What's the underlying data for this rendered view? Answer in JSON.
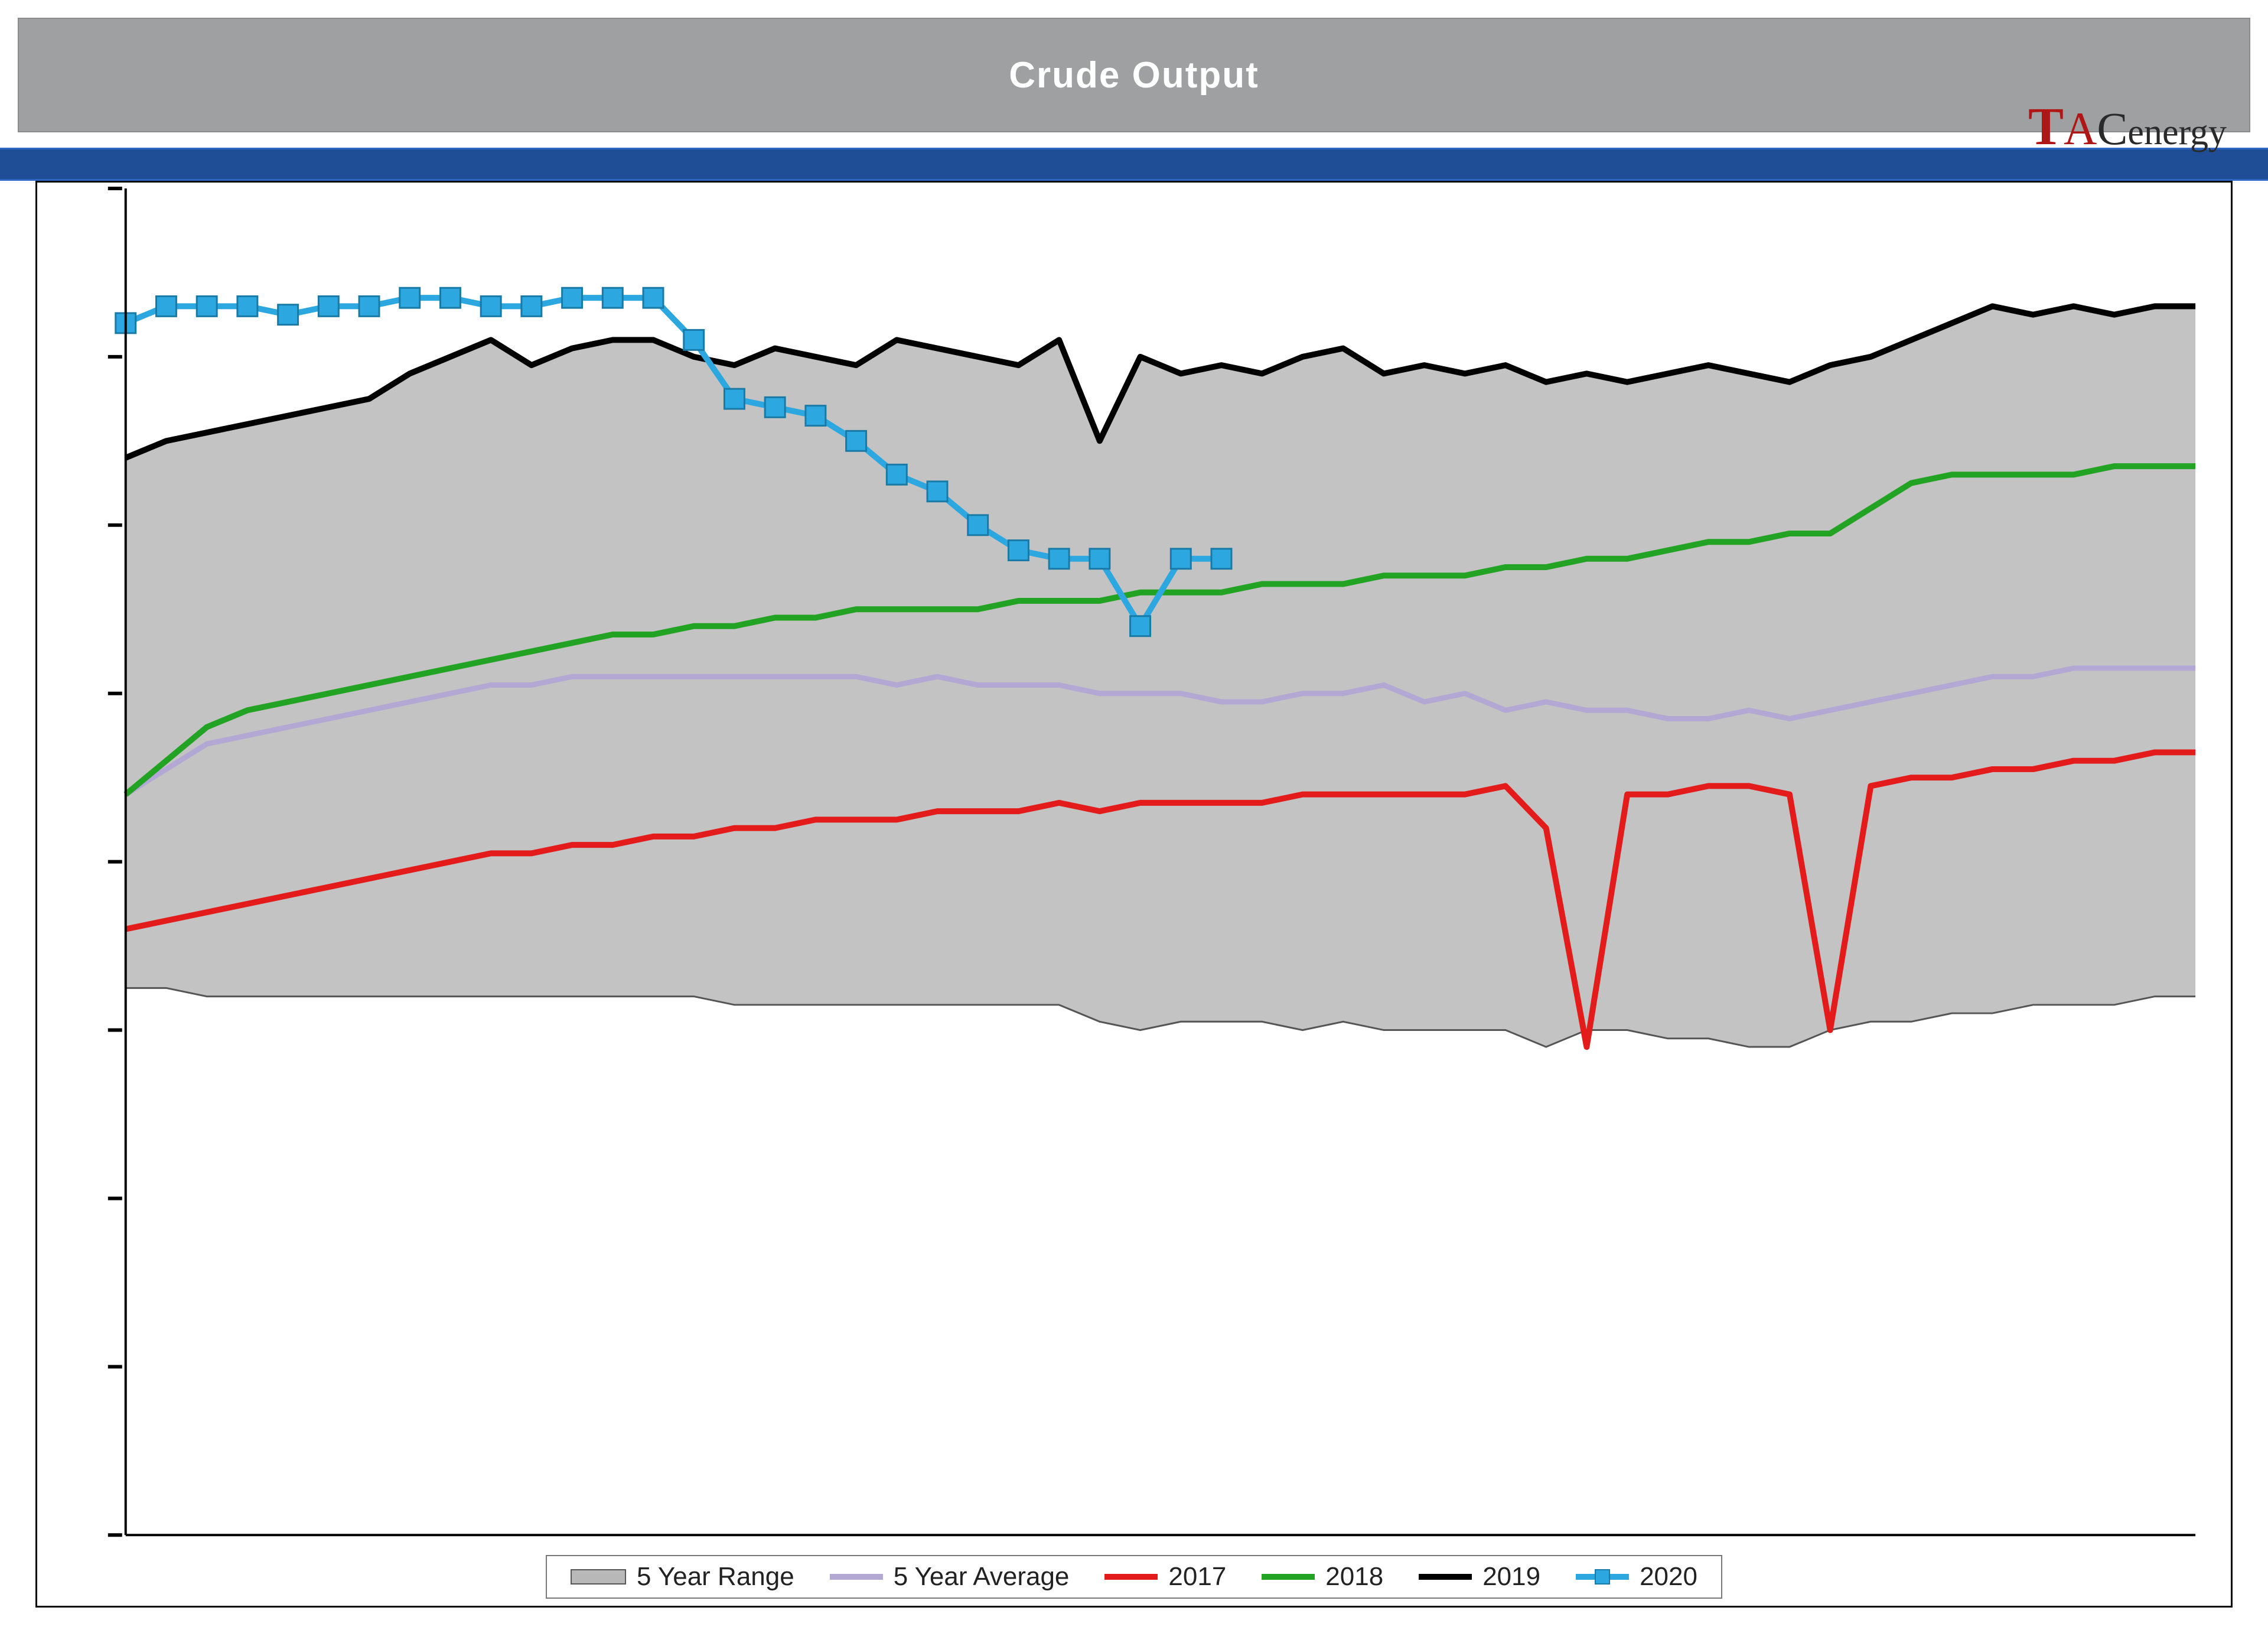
{
  "title": "Crude Output",
  "logo": {
    "t": "T",
    "a": "A",
    "c": "C",
    "rest": "energy"
  },
  "legend": {
    "range": "5 Year Range",
    "avg": "5 Year Average",
    "y2017": "2017",
    "y2018": "2018",
    "y2019": "2019",
    "y2020": "2020"
  },
  "chart": {
    "type": "line",
    "x_count": 52,
    "ylim": [
      6000,
      14000
    ],
    "y_gridlines": [
      6000,
      7000,
      8000,
      9000,
      10000,
      11000,
      12000,
      13000,
      14000
    ],
    "background_color": "#ffffff",
    "grid_tick_color": "#000000",
    "title_bg": "#9fa0a2",
    "title_color": "#ffffff",
    "stripe_color": "#1f4e97",
    "series": {
      "range_high": {
        "color": "#b8b8b8",
        "values": [
          12400,
          12500,
          12550,
          12600,
          12650,
          12700,
          12750,
          12900,
          13000,
          13100,
          12950,
          13050,
          13100,
          13100,
          13000,
          12950,
          13050,
          13000,
          12950,
          13100,
          13050,
          13000,
          12950,
          13100,
          12500,
          13000,
          12900,
          12950,
          12900,
          13000,
          13050,
          12900,
          12950,
          12900,
          12950,
          12850,
          12900,
          12850,
          12900,
          12950,
          12900,
          12850,
          12950,
          13000,
          13100,
          13200,
          13300,
          13250,
          13300,
          13250,
          13300,
          13300
        ]
      },
      "range_low": {
        "color": "#b8b8b8",
        "values": [
          9250,
          9250,
          9200,
          9200,
          9200,
          9200,
          9200,
          9200,
          9200,
          9200,
          9200,
          9200,
          9200,
          9200,
          9200,
          9150,
          9150,
          9150,
          9150,
          9150,
          9150,
          9150,
          9150,
          9150,
          9050,
          9000,
          9050,
          9050,
          9050,
          9000,
          9050,
          9000,
          9000,
          9000,
          9000,
          8900,
          9000,
          9000,
          8950,
          8950,
          8900,
          8900,
          9000,
          9050,
          9050,
          9100,
          9100,
          9150,
          9150,
          9150,
          9200,
          9200
        ]
      },
      "avg": {
        "label": "5 Year Average",
        "color": "#b2a8d3",
        "width": 9,
        "values": [
          10400,
          10550,
          10700,
          10750,
          10800,
          10850,
          10900,
          10950,
          11000,
          11050,
          11050,
          11100,
          11100,
          11100,
          11100,
          11100,
          11100,
          11100,
          11100,
          11050,
          11100,
          11050,
          11050,
          11050,
          11000,
          11000,
          11000,
          10950,
          10950,
          11000,
          11000,
          11050,
          10950,
          11000,
          10900,
          10950,
          10900,
          10900,
          10850,
          10850,
          10900,
          10850,
          10900,
          10950,
          11000,
          11050,
          11100,
          11100,
          11150,
          11150,
          11150,
          11150
        ]
      },
      "y2017": {
        "label": "2017",
        "color": "#e31b1b",
        "width": 10,
        "values": [
          9600,
          9650,
          9700,
          9750,
          9800,
          9850,
          9900,
          9950,
          10000,
          10050,
          10050,
          10100,
          10100,
          10150,
          10150,
          10200,
          10200,
          10250,
          10250,
          10250,
          10300,
          10300,
          10300,
          10350,
          10300,
          10350,
          10350,
          10350,
          10350,
          10400,
          10400,
          10400,
          10400,
          10400,
          10450,
          10200,
          8900,
          10400,
          10400,
          10450,
          10450,
          10400,
          9000,
          10450,
          10500,
          10500,
          10550,
          10550,
          10600,
          10600,
          10650,
          10650
        ]
      },
      "y2018": {
        "label": "2018",
        "color": "#23a323",
        "width": 10,
        "values": [
          10400,
          10600,
          10800,
          10900,
          10950,
          11000,
          11050,
          11100,
          11150,
          11200,
          11250,
          11300,
          11350,
          11350,
          11400,
          11400,
          11450,
          11450,
          11500,
          11500,
          11500,
          11500,
          11550,
          11550,
          11550,
          11600,
          11600,
          11600,
          11650,
          11650,
          11650,
          11700,
          11700,
          11700,
          11750,
          11750,
          11800,
          11800,
          11850,
          11900,
          11900,
          11950,
          11950,
          12100,
          12250,
          12300,
          12300,
          12300,
          12300,
          12350,
          12350,
          12350
        ]
      },
      "y2019": {
        "label": "2019",
        "color": "#000000",
        "width": 10,
        "values": [
          12400,
          12500,
          12550,
          12600,
          12650,
          12700,
          12750,
          12900,
          13000,
          13100,
          12950,
          13050,
          13100,
          13100,
          13000,
          12950,
          13050,
          13000,
          12950,
          13100,
          13050,
          13000,
          12950,
          13100,
          12500,
          13000,
          12900,
          12950,
          12900,
          13000,
          13050,
          12900,
          12950,
          12900,
          12950,
          12850,
          12900,
          12850,
          12900,
          12950,
          12900,
          12850,
          12950,
          13000,
          13100,
          13200,
          13300,
          13250,
          13300,
          13250,
          13300,
          13300
        ]
      },
      "y2020": {
        "label": "2020",
        "color": "#2ca7e0",
        "width": 10,
        "marker": "square",
        "marker_size": 34,
        "values": [
          13200,
          13300,
          13300,
          13300,
          13250,
          13300,
          13300,
          13350,
          13350,
          13300,
          13300,
          13350,
          13350,
          13350,
          13100,
          12750,
          12700,
          12650,
          12500,
          12300,
          12200,
          12000,
          11850,
          11800,
          11800,
          11400,
          11800,
          11800
        ]
      }
    }
  }
}
